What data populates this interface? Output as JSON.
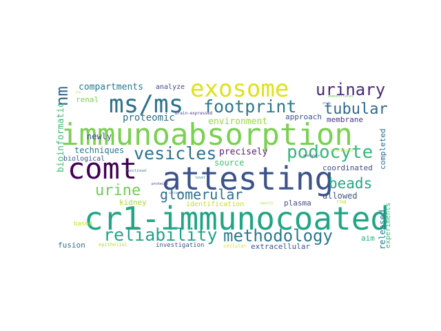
{
  "words": [
    {
      "text": "immunoabsorption",
      "color": "#7ad151"
    },
    {
      "text": "attesting",
      "color": "#3b528b"
    },
    {
      "text": "cr1-immunocoated",
      "color": "#21a685"
    },
    {
      "text": "exosome",
      "color": "#dde318"
    },
    {
      "text": "comt",
      "color": "#440154"
    },
    {
      "text": "ms/ms",
      "color": "#2c728e"
    },
    {
      "text": "footprint",
      "color": "#2a788e"
    },
    {
      "text": "podocyte",
      "color": "#35b779"
    },
    {
      "text": "vesicles",
      "color": "#2c728e"
    },
    {
      "text": "reliability",
      "color": "#20a386"
    },
    {
      "text": "methodology",
      "color": "#2a788e"
    },
    {
      "text": "urinary",
      "color": "#482878"
    },
    {
      "text": "tubular",
      "color": "#306a8e"
    },
    {
      "text": "beads",
      "color": "#22a884"
    },
    {
      "text": "urine",
      "color": "#6ece58"
    },
    {
      "text": "glomerular",
      "color": "#2d708e"
    },
    {
      "text": "nm",
      "color": "#31688e"
    },
    {
      "text": "proteomic",
      "color": "#2c728e"
    },
    {
      "text": "environment",
      "color": "#95d840"
    },
    {
      "text": "compartments",
      "color": "#2a788e"
    },
    {
      "text": "precisely",
      "color": "#5b1e6f"
    },
    {
      "text": "newly",
      "color": "#3e4a89"
    },
    {
      "text": "techniques",
      "color": "#2a788e"
    },
    {
      "text": "source",
      "color": "#44bf70"
    },
    {
      "text": "bioinformatic",
      "color": "#3dbc74"
    },
    {
      "text": "biological",
      "color": "#3b528b"
    },
    {
      "text": "kidney",
      "color": "#aadc32"
    },
    {
      "text": "identification",
      "color": "#c2df23"
    },
    {
      "text": "allowed",
      "color": "#3b528b"
    },
    {
      "text": "coordinated",
      "color": "#3e4a89"
    },
    {
      "text": "plasma",
      "color": "#3e4a89"
    },
    {
      "text": "completed",
      "color": "#2c728e"
    },
    {
      "text": "released",
      "color": "#2a788e"
    },
    {
      "text": "experiments",
      "color": "#35b779"
    },
    {
      "text": "fusion",
      "color": "#2c728e"
    },
    {
      "text": "investigation",
      "color": "#3b528b"
    },
    {
      "text": "extracellular",
      "color": "#3b528b"
    },
    {
      "text": "aim",
      "color": "#27ad81"
    },
    {
      "text": "membrane",
      "color": "#453781"
    },
    {
      "text": "approach",
      "color": "#3b528b"
    },
    {
      "text": "analyze",
      "color": "#3e4a89"
    },
    {
      "text": "renal",
      "color": "#7ad151"
    },
    {
      "text": "based",
      "color": "#c8e020"
    },
    {
      "text": "epithelial",
      "color": "#b5de2b"
    },
    {
      "text": "cellular",
      "color": "#d2e21b"
    },
    {
      "text": "rna",
      "color": "#b5de2b"
    },
    {
      "text": "brain-expressed",
      "color": "#453781"
    },
    {
      "text": "processes",
      "color": "#b8de29"
    },
    {
      "text": "functional",
      "color": "#2c728e"
    },
    {
      "text": "proteins",
      "color": "#482878"
    },
    {
      "text": "demonstrated",
      "color": "#6ece58"
    },
    {
      "text": "analysis",
      "color": "#3e4a89"
    },
    {
      "text": "level",
      "color": "#2a788e"
    },
    {
      "text": "identify",
      "color": "#9fda3a"
    },
    {
      "text": "curiosity",
      "color": "#3b528b"
    },
    {
      "text": "use",
      "color": "#a0da39"
    },
    {
      "text": "study",
      "color": "#3e4a89"
    }
  ]
}
